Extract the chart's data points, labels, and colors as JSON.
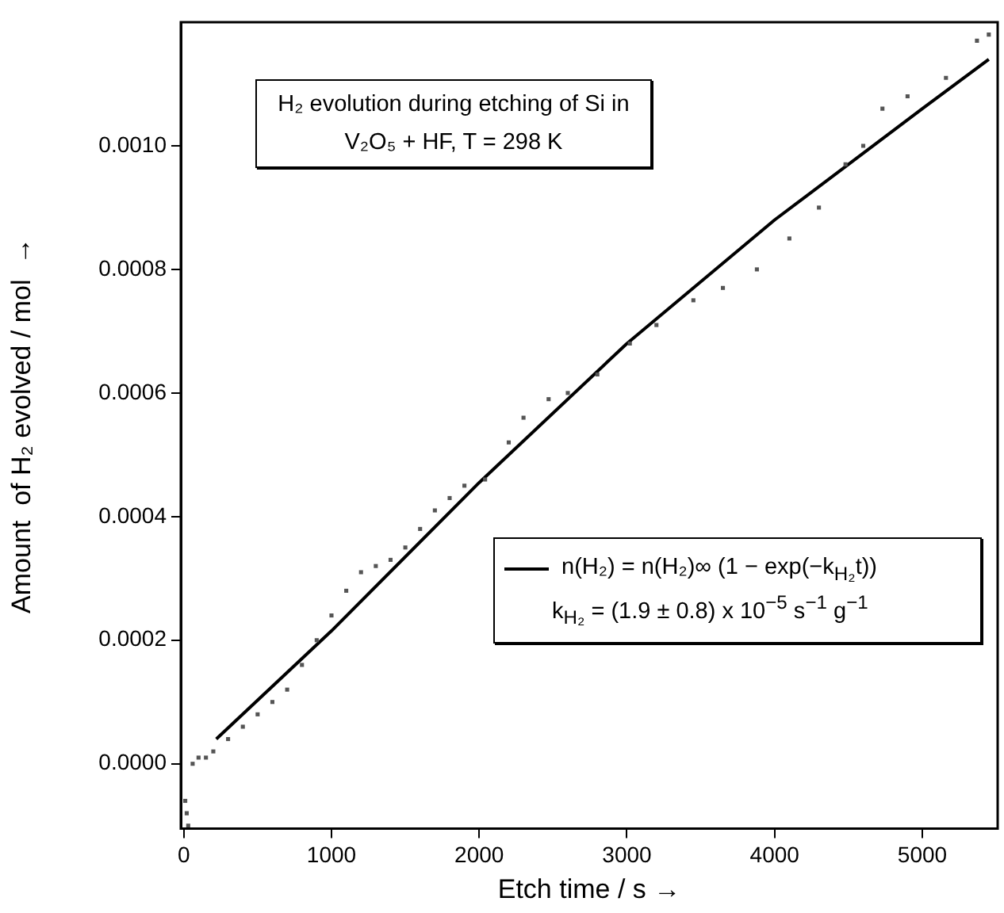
{
  "chart_data": {
    "type": "scatter",
    "title": "H₂ evolution during  etching of Si in V₂O₅ + HF, T = 298 K",
    "xlabel": "Etch time / s →",
    "ylabel": "Amount  of H₂ evolved / mol  →",
    "xlim": [
      -20,
      5510
    ],
    "ylim": [
      -0.000105,
      0.0012
    ],
    "xticks": [
      0,
      1000,
      2000,
      3000,
      4000,
      5000
    ],
    "yticks": [
      {
        "value": 0,
        "label": "0.0000"
      },
      {
        "value": 0.0002,
        "label": "0.0002"
      },
      {
        "value": 0.0004,
        "label": "0.0004"
      },
      {
        "value": 0.0006,
        "label": "0.0006"
      },
      {
        "value": 0.0008,
        "label": "0.0008"
      },
      {
        "value": 0.001,
        "label": "0.0010"
      }
    ],
    "grid": false,
    "legend": "bottom right",
    "marker": "square",
    "annotations": [
      "k$_{H₂}$ = (1.9 ± 0.8) x 10$^{−5}$ s$^{−1}$ g$^{−1}$"
    ],
    "series": [
      {
        "color": "#555555",
        "x": [
          10,
          20,
          30,
          60,
          100,
          150,
          200,
          300,
          400,
          500,
          600,
          700,
          800,
          900,
          1000,
          1100,
          1200,
          1300,
          1400,
          1500,
          1600,
          1700,
          1800,
          1900,
          2040,
          2200,
          2300,
          2470,
          2600,
          2800,
          3020,
          3200,
          3450,
          3650,
          3880,
          4100,
          4300,
          4480,
          4600,
          4730,
          4900,
          5160,
          5370,
          5450
        ],
        "values": [
          -6e-05,
          -8e-05,
          -0.0001,
          0.0,
          1e-05,
          1e-05,
          2e-05,
          4e-05,
          6e-05,
          8e-05,
          0.0001,
          0.00012,
          0.00016,
          0.0002,
          0.00024,
          0.00028,
          0.00031,
          0.00032,
          0.00033,
          0.00035,
          0.00038,
          0.00041,
          0.00043,
          0.00045,
          0.00046,
          0.00052,
          0.00056,
          0.00059,
          0.0006,
          0.00063,
          0.00068,
          0.00071,
          0.00075,
          0.00077,
          0.0008,
          0.00085,
          0.0009,
          0.00097,
          0.001,
          0.00106,
          0.00108,
          0.00111,
          0.00117,
          0.00118
        ]
      },
      {
        "type": "line",
        "name": "n(H₂) = n(H₂)∞ (1 − exp(−k$_{H₂}$t))",
        "color": "#000000",
        "marker": "none",
        "line_style": "solid",
        "x": [
          220,
          1000,
          2000,
          3000,
          4000,
          5000,
          5450
        ],
        "values": [
          4e-05,
          0.000215,
          0.000455,
          0.00068,
          0.00088,
          0.00106,
          0.00114
        ]
      }
    ]
  }
}
